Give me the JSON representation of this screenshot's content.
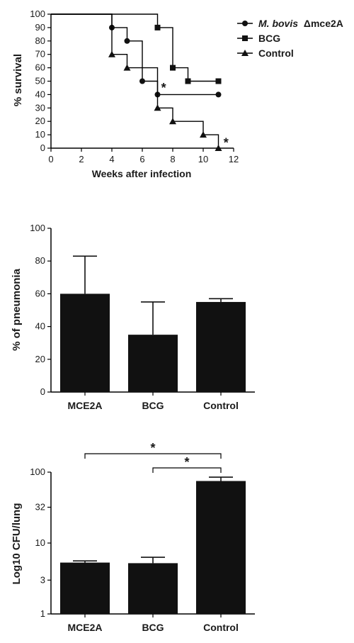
{
  "chart_data": [
    {
      "type": "line",
      "chart_kind": "kaplan-meier step survival",
      "xlabel": "Weeks after infection",
      "ylabel": "% survival",
      "xlim": [
        0,
        12
      ],
      "ylim": [
        0,
        100
      ],
      "xticks": [
        0,
        2,
        4,
        6,
        8,
        10,
        12
      ],
      "yticks": [
        0,
        10,
        20,
        30,
        40,
        50,
        60,
        70,
        80,
        90,
        100
      ],
      "legend_placement": "top-right",
      "series": [
        {
          "name_prefix": "M. bovis",
          "name_suffix": "Δmce2A",
          "marker": "circle",
          "steps": [
            [
              0,
              100
            ],
            [
              4,
              90
            ],
            [
              5,
              80
            ],
            [
              6,
              50
            ],
            [
              7,
              40
            ],
            [
              11,
              40
            ]
          ],
          "points": [
            [
              4,
              90
            ],
            [
              5,
              80
            ],
            [
              6,
              50
            ],
            [
              7,
              40
            ],
            [
              11,
              40
            ]
          ]
        },
        {
          "name": "BCG",
          "marker": "square",
          "steps": [
            [
              0,
              100
            ],
            [
              7,
              90
            ],
            [
              8,
              60
            ],
            [
              9,
              50
            ],
            [
              11,
              50
            ]
          ],
          "points": [
            [
              7,
              90
            ],
            [
              8,
              60
            ],
            [
              9,
              50
            ],
            [
              11,
              50
            ]
          ]
        },
        {
          "name": "Control",
          "marker": "triangle",
          "steps": [
            [
              0,
              100
            ],
            [
              4,
              70
            ],
            [
              5,
              60
            ],
            [
              7,
              30
            ],
            [
              8,
              20
            ],
            [
              10,
              10
            ],
            [
              11,
              0
            ]
          ],
          "points": [
            [
              4,
              70
            ],
            [
              5,
              60
            ],
            [
              7,
              30
            ],
            [
              8,
              20
            ],
            [
              10,
              10
            ],
            [
              11,
              0
            ]
          ]
        }
      ],
      "annotations": [
        {
          "text": "*",
          "x": 7.4,
          "y": 45
        },
        {
          "text": "*",
          "x": 11.5,
          "y": 4
        }
      ]
    },
    {
      "type": "bar",
      "categories": [
        "MCE2A",
        "BCG",
        "Control"
      ],
      "values": [
        60,
        35,
        55
      ],
      "errors": [
        23,
        20,
        2
      ],
      "ylabel": "% of pneumonia",
      "ylim": [
        0,
        100
      ],
      "yticks": [
        0,
        20,
        40,
        60,
        80,
        100
      ]
    },
    {
      "type": "bar",
      "scale": "log",
      "categories": [
        "MCE2A",
        "BCG",
        "Control"
      ],
      "values": [
        5.3,
        5.2,
        75
      ],
      "errors": [
        0.3,
        1.1,
        10
      ],
      "ylabel": "Log10 CFU/lung",
      "ylim": [
        1,
        100
      ],
      "yticks": [
        1,
        3,
        10,
        32,
        100
      ],
      "ytick_labels": [
        "1",
        "3",
        "10",
        "32",
        "100"
      ],
      "significance": [
        {
          "from": "MCE2A",
          "to": "Control",
          "text": "*"
        },
        {
          "from": "BCG",
          "to": "Control",
          "text": "*"
        }
      ]
    }
  ]
}
